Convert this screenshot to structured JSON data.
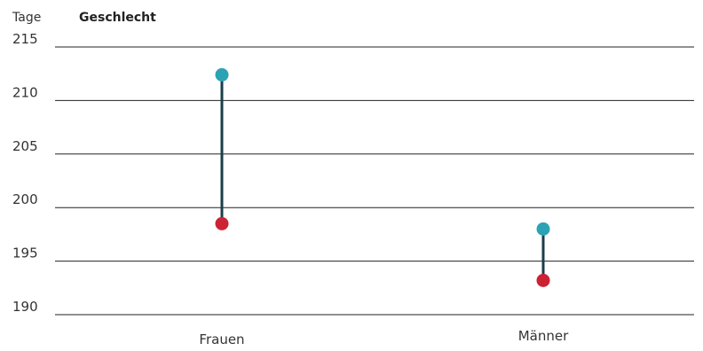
{
  "chart_data": {
    "type": "dumbbell",
    "title": "Geschlecht",
    "ylabel": "Tage",
    "ylim": [
      190,
      215
    ],
    "yticks": [
      190,
      195,
      200,
      205,
      210,
      215
    ],
    "categories": [
      "Frauen",
      "Männer"
    ],
    "series": [
      {
        "values": [
          212.4,
          198.0
        ],
        "color": "#2ba3b4"
      },
      {
        "values": [
          198.5,
          193.2
        ],
        "color": "#cc2233"
      }
    ],
    "connector_color": "#1a3e4a",
    "grid": true
  }
}
